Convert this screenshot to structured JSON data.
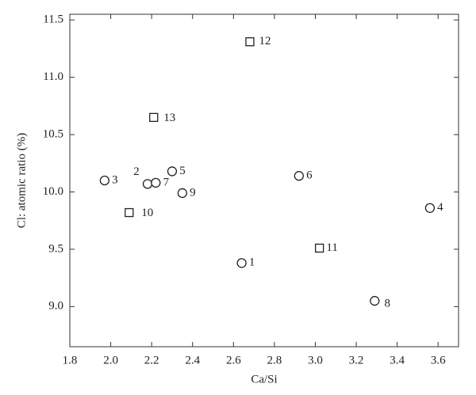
{
  "chart_data": {
    "type": "scatter",
    "x_label": "Ca/Si",
    "y_label": "Cl: atomic ratio (%)",
    "xlim": [
      1.8,
      3.7
    ],
    "ylim": [
      8.65,
      11.55
    ],
    "xticks": [
      {
        "value": 1.8,
        "label": "1.8"
      },
      {
        "value": 2.0,
        "label": "2.0"
      },
      {
        "value": 2.2,
        "label": "2.2"
      },
      {
        "value": 2.4,
        "label": "2.4"
      },
      {
        "value": 2.6,
        "label": "2.6"
      },
      {
        "value": 2.8,
        "label": "2.8"
      },
      {
        "value": 3.0,
        "label": "3.0"
      },
      {
        "value": 3.2,
        "label": "3.2"
      },
      {
        "value": 3.4,
        "label": "3.4"
      },
      {
        "value": 3.6,
        "label": "3.6"
      }
    ],
    "yticks": [
      {
        "value": 9.0,
        "label": "9.0"
      },
      9.5,
      {
        "value": 10.0,
        "label": "10.0"
      },
      10.5,
      {
        "value": 11.0,
        "label": "11.0"
      },
      11.5
    ],
    "series": [
      {
        "marker": "circle",
        "color": "#222222",
        "labels": [
          "1",
          "2",
          "3",
          "4",
          "5",
          "6",
          "7",
          "8",
          "9"
        ],
        "x": [
          2.64,
          2.18,
          1.97,
          3.56,
          2.3,
          2.92,
          2.22,
          3.29,
          2.35
        ],
        "values": [
          9.38,
          10.07,
          10.1,
          9.86,
          10.18,
          10.14,
          10.08,
          9.05,
          9.99
        ]
      },
      {
        "marker": "square",
        "color": "#222222",
        "labels": [
          "10",
          "11",
          "12",
          "13"
        ],
        "x": [
          2.09,
          3.02,
          2.68,
          2.21
        ],
        "values": [
          9.82,
          9.51,
          11.31,
          10.65
        ]
      }
    ]
  }
}
